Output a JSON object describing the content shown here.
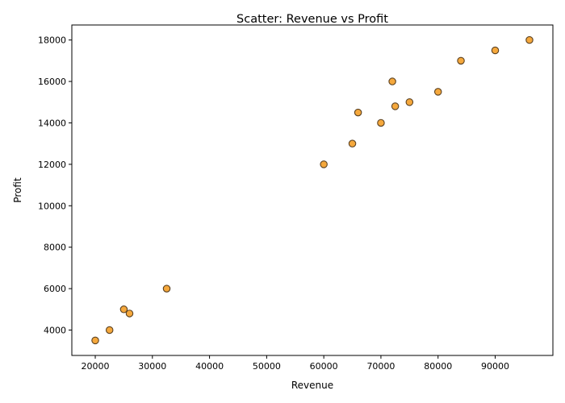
{
  "chart_data": {
    "type": "scatter",
    "title": "Scatter: Revenue vs Profit",
    "xlabel": "Revenue",
    "ylabel": "Profit",
    "xlim": [
      15900,
      100100
    ],
    "ylim": [
      2775,
      18725
    ],
    "x_ticks": [
      20000,
      30000,
      40000,
      50000,
      60000,
      70000,
      80000,
      90000
    ],
    "y_ticks": [
      4000,
      6000,
      8000,
      10000,
      12000,
      14000,
      16000,
      18000
    ],
    "grid": false,
    "marker_color": "#f5a83c",
    "marker_edge_color": "#5a4020",
    "points": [
      {
        "x": 20000,
        "y": 3500
      },
      {
        "x": 22500,
        "y": 4000
      },
      {
        "x": 25000,
        "y": 5000
      },
      {
        "x": 26000,
        "y": 4800
      },
      {
        "x": 32500,
        "y": 6000
      },
      {
        "x": 60000,
        "y": 12000
      },
      {
        "x": 65000,
        "y": 13000
      },
      {
        "x": 66000,
        "y": 14500
      },
      {
        "x": 70000,
        "y": 14000
      },
      {
        "x": 72000,
        "y": 16000
      },
      {
        "x": 72500,
        "y": 14800
      },
      {
        "x": 75000,
        "y": 15000
      },
      {
        "x": 80000,
        "y": 15500
      },
      {
        "x": 84000,
        "y": 17000
      },
      {
        "x": 90000,
        "y": 17500
      },
      {
        "x": 96000,
        "y": 18000
      }
    ]
  }
}
